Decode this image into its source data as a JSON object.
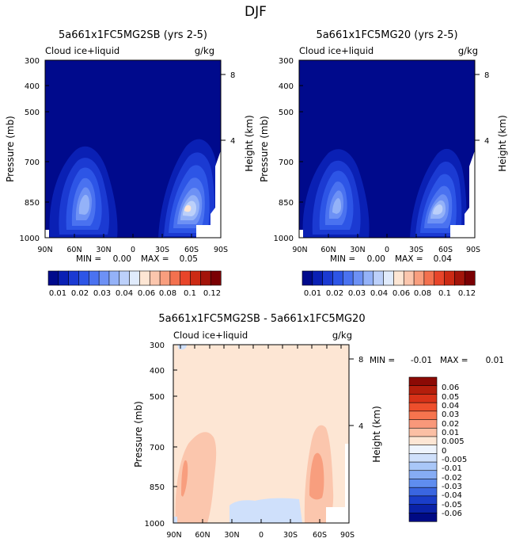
{
  "figure_title": "DJF",
  "chart_data": [
    {
      "type": "heatmap",
      "title": "5a661x1FC5MG2SB (yrs 2-5)",
      "subtitle_left": "Cloud ice+liquid",
      "subtitle_right": "g/kg",
      "ylabel": "Pressure (mb)",
      "ylabel_right": "Height (km)",
      "x_ticks": [
        "90N",
        "60N",
        "30N",
        "0",
        "30S",
        "60S",
        "90S"
      ],
      "y_ticks": [
        "300",
        "400",
        "500",
        "700",
        "850",
        "1000"
      ],
      "right_ticks": [
        "8",
        "4"
      ],
      "min_label": "MIN =",
      "min_value": "0.00",
      "max_label": "MAX =",
      "max_value": "0.05",
      "features": [
        {
          "name": "northern-cloud-maximum",
          "lat": 62,
          "pressure_mb": 850,
          "value": 0.03
        },
        {
          "name": "southern-cloud-maximum",
          "lat": -57,
          "pressure_mb": 850,
          "value": 0.05
        }
      ]
    },
    {
      "type": "heatmap",
      "title": "5a661x1FC5MG20 (yrs 2-5)",
      "subtitle_left": "Cloud ice+liquid",
      "subtitle_right": "g/kg",
      "ylabel": "Pressure (mb)",
      "ylabel_right": "Height (km)",
      "x_ticks": [
        "90N",
        "60N",
        "30N",
        "0",
        "30S",
        "60S",
        "90S"
      ],
      "y_ticks": [
        "300",
        "400",
        "500",
        "700",
        "850",
        "1000"
      ],
      "right_ticks": [
        "8",
        "4"
      ],
      "min_label": "MIN =",
      "min_value": "0.00",
      "max_label": "MAX =",
      "max_value": "0.04",
      "features": [
        {
          "name": "northern-cloud-maximum",
          "lat": 62,
          "pressure_mb": 850,
          "value": 0.03
        },
        {
          "name": "southern-cloud-maximum",
          "lat": -57,
          "pressure_mb": 850,
          "value": 0.04
        }
      ]
    },
    {
      "type": "heatmap",
      "title": "5a661x1FC5MG2SB - 5a661x1FC5MG20",
      "subtitle_left": "Cloud ice+liquid",
      "subtitle_right": "g/kg",
      "ylabel": "Pressure (mb)",
      "ylabel_right": "Height (km)",
      "x_ticks": [
        "90N",
        "60N",
        "30N",
        "0",
        "30S",
        "60S",
        "90S"
      ],
      "y_ticks": [
        "300",
        "400",
        "500",
        "700",
        "850",
        "1000"
      ],
      "right_ticks": [
        "8",
        "4"
      ],
      "min_label": "MIN =",
      "min_value": "-0.01",
      "max_label": "MAX =",
      "max_value": "0.01",
      "features": [
        {
          "name": "northern-positive-difference",
          "lat": 72,
          "pressure_mb": 800,
          "value": 0.005
        },
        {
          "name": "southern-positive-difference",
          "lat": -55,
          "pressure_mb": 800,
          "value": 0.01
        },
        {
          "name": "tropical-negative-difference",
          "lat": -5,
          "pressure_mb": 950,
          "value": -0.005
        }
      ]
    }
  ],
  "colorbar_abs": {
    "labels": [
      "0.01",
      "0.02",
      "0.03",
      "0.04",
      "0.06",
      "0.08",
      "0.1",
      "0.12"
    ],
    "colors": [
      "#000a8c",
      "#0a20b4",
      "#1b3ad2",
      "#2d55e6",
      "#4a72f0",
      "#6d91f5",
      "#94b2f8",
      "#bcd0fa",
      "#e0ebfc",
      "#fde6d4",
      "#fbc6ad",
      "#f89e7e",
      "#f3714f",
      "#e8452a",
      "#cc2a14",
      "#a3140a",
      "#7a0003"
    ]
  },
  "colorbar_diff": {
    "labels": [
      "0.06",
      "0.05",
      "0.04",
      "0.03",
      "0.02",
      "0.01",
      "0.005",
      "0",
      "-0.005",
      "-0.01",
      "-0.02",
      "-0.03",
      "-0.04",
      "-0.05",
      "-0.06"
    ],
    "colors": [
      "#8c0a05",
      "#b41e0c",
      "#d83218",
      "#ee4f2c",
      "#f6744e",
      "#f9987a",
      "#fbbfa4",
      "#fde6d4",
      "#eef4fd",
      "#cfe0fb",
      "#a9c7f8",
      "#86acf4",
      "#5f8def",
      "#3a66e0",
      "#1a3ec9",
      "#0a22a8",
      "#000a84"
    ]
  }
}
